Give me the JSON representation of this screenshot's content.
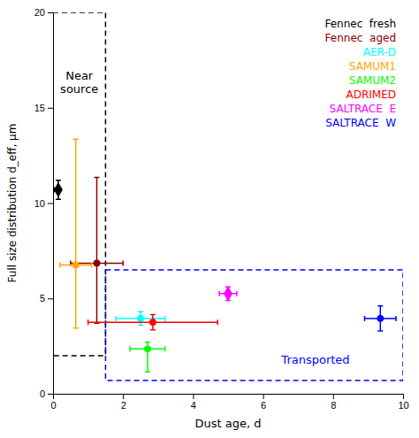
{
  "chart_data": {
    "type": "scatter",
    "xlabel": "Dust age, d",
    "ylabel": "Full size distribution d_eff, μm",
    "xlim": [
      0,
      10
    ],
    "ylim": [
      0,
      20
    ],
    "xticks": [
      0,
      2,
      4,
      6,
      8,
      10
    ],
    "yticks": [
      0,
      5,
      10,
      15,
      20
    ],
    "legend": "upper right",
    "series": [
      {
        "name": "Fennec  fresh",
        "color": "black",
        "marker": "diamond",
        "x": [
          0.15
        ],
        "values": [
          10.7
        ],
        "xerr_lo": [
          0.12
        ],
        "xerr_hi": [
          0.0
        ],
        "yerr_lo": [
          0.5
        ],
        "yerr_hi": [
          0.5
        ]
      },
      {
        "name": "Fennec  aged",
        "color": "#8B0000",
        "marker": "circle",
        "x": [
          1.25
        ],
        "values": [
          6.85
        ],
        "xerr_lo": [
          0.75
        ],
        "xerr_hi": [
          0.75
        ],
        "yerr_lo": [
          3.15
        ],
        "yerr_hi": [
          4.5
        ]
      },
      {
        "name": "AER-D",
        "color": "cyan",
        "marker": "circle",
        "x": [
          2.5
        ],
        "values": [
          3.95
        ],
        "xerr_lo": [
          0.7
        ],
        "xerr_hi": [
          0.7
        ],
        "yerr_lo": [
          0.35
        ],
        "yerr_hi": [
          0.35
        ]
      },
      {
        "name": "SAMUM1",
        "color": "orange",
        "marker": "circle",
        "x": [
          0.65
        ],
        "values": [
          6.75
        ],
        "xerr_lo": [
          0.45
        ],
        "xerr_hi": [
          0.45
        ],
        "yerr_lo": [
          3.3
        ],
        "yerr_hi": [
          6.6
        ]
      },
      {
        "name": "SAMUM2",
        "color": "lime",
        "marker": "circle",
        "x": [
          2.7
        ],
        "values": [
          2.35
        ],
        "xerr_lo": [
          0.5
        ],
        "xerr_hi": [
          0.5
        ],
        "yerr_lo": [
          1.2
        ],
        "yerr_hi": [
          0.35
        ]
      },
      {
        "name": "ADRIMED",
        "color": "red",
        "marker": "circle",
        "x": [
          2.85
        ],
        "values": [
          3.75
        ],
        "xerr_lo": [
          1.85
        ],
        "xerr_hi": [
          1.85
        ],
        "yerr_lo": [
          0.4
        ],
        "yerr_hi": [
          0.4
        ]
      },
      {
        "name": "SALTRACE  E",
        "color": "magenta",
        "marker": "diamond",
        "x": [
          5.0
        ],
        "values": [
          5.25
        ],
        "xerr_lo": [
          0.25
        ],
        "xerr_hi": [
          0.25
        ],
        "yerr_lo": [
          0.35
        ],
        "yerr_hi": [
          0.35
        ]
      },
      {
        "name": "SALTRACE  W",
        "color": "blue",
        "marker": "circle",
        "x": [
          9.35
        ],
        "values": [
          3.95
        ],
        "xerr_lo": [
          0.45
        ],
        "xerr_hi": [
          0.45
        ],
        "yerr_lo": [
          0.65
        ],
        "yerr_hi": [
          0.65
        ]
      }
    ],
    "regions": [
      {
        "x0": 0.0,
        "x1": 1.5,
        "y0": 2.0,
        "y1": 20.0,
        "color": "black",
        "line_style": "dashed"
      },
      {
        "x0": 1.5,
        "x1": 10.0,
        "y0": 0.7,
        "y1": 6.5,
        "color": "blue",
        "line_style": "dashed"
      }
    ],
    "annotations": [
      {
        "text": "Near\nsource",
        "x": 0.75,
        "y": 17.0,
        "color": "black"
      },
      {
        "text": "Transported",
        "x": 7.5,
        "y": 1.8,
        "color": "blue"
      }
    ]
  }
}
